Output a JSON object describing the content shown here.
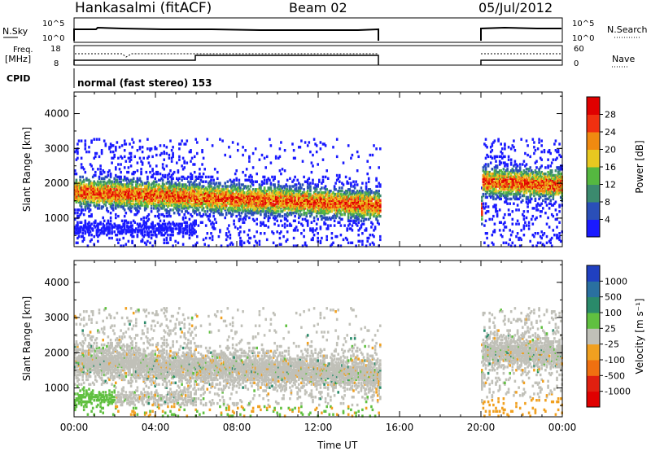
{
  "header": {
    "station": "Hankasalmi (fitACF)",
    "beam": "Beam 02",
    "date": "05/Jul/2012"
  },
  "labels": {
    "nsky": "N.Sky",
    "freq_line1": "Freq.",
    "freq_line2": "[MHz]",
    "cpid": "CPID",
    "nsearch": "N.Search",
    "nave": "Nave",
    "cpid_value": "normal (fast stereo) 153",
    "nsky_ticks": [
      "10^5",
      "10^0"
    ],
    "nsearch_ticks": [
      "10^5",
      "10^0"
    ],
    "freq_ticks": [
      "18",
      "8"
    ],
    "nave_ticks": [
      "60",
      "0"
    ]
  },
  "chart_data": [
    {
      "type": "heatmap",
      "name": "power",
      "ylabel": "Slant Range [km]",
      "ylim": [
        180,
        4620
      ],
      "yticks": [
        1000,
        2000,
        3000,
        4000
      ],
      "xlim": [
        0,
        24
      ],
      "xtick_labels": [
        "00:00",
        "04:00",
        "08:00",
        "12:00",
        "16:00",
        "20:00",
        "00:00"
      ],
      "colorbar": {
        "label": "Power [dB]",
        "ticks": [
          "4",
          "8",
          "12",
          "16",
          "20",
          "24",
          "28"
        ],
        "colors": [
          "#1a1aff",
          "#2a4fb8",
          "#3b8a6e",
          "#55b840",
          "#e8c820",
          "#f08a10",
          "#f03010",
          "#e00000"
        ]
      },
      "data_gap_hours": [
        15,
        20
      ]
    },
    {
      "type": "heatmap",
      "name": "velocity",
      "ylabel": "Slant Range [km]",
      "xlabel": "Time UT",
      "ylim": [
        180,
        4620
      ],
      "yticks": [
        1000,
        2000,
        3000,
        4000
      ],
      "xlim": [
        0,
        24
      ],
      "xtick_labels": [
        "00:00",
        "04:00",
        "08:00",
        "12:00",
        "16:00",
        "20:00",
        "00:00"
      ],
      "colorbar": {
        "label": "Velocity [m s⁻¹]",
        "ticks": [
          "1000",
          "500",
          "100",
          "25",
          "-25",
          "-100",
          "-500",
          "-1000"
        ],
        "colors": [
          "#2040c0",
          "#2a70a0",
          "#2a8a6a",
          "#60c040",
          "#c0c0b8",
          "#f0a020",
          "#f07010",
          "#e02010",
          "#e00000"
        ]
      },
      "data_gap_hours": [
        15,
        20
      ]
    }
  ]
}
